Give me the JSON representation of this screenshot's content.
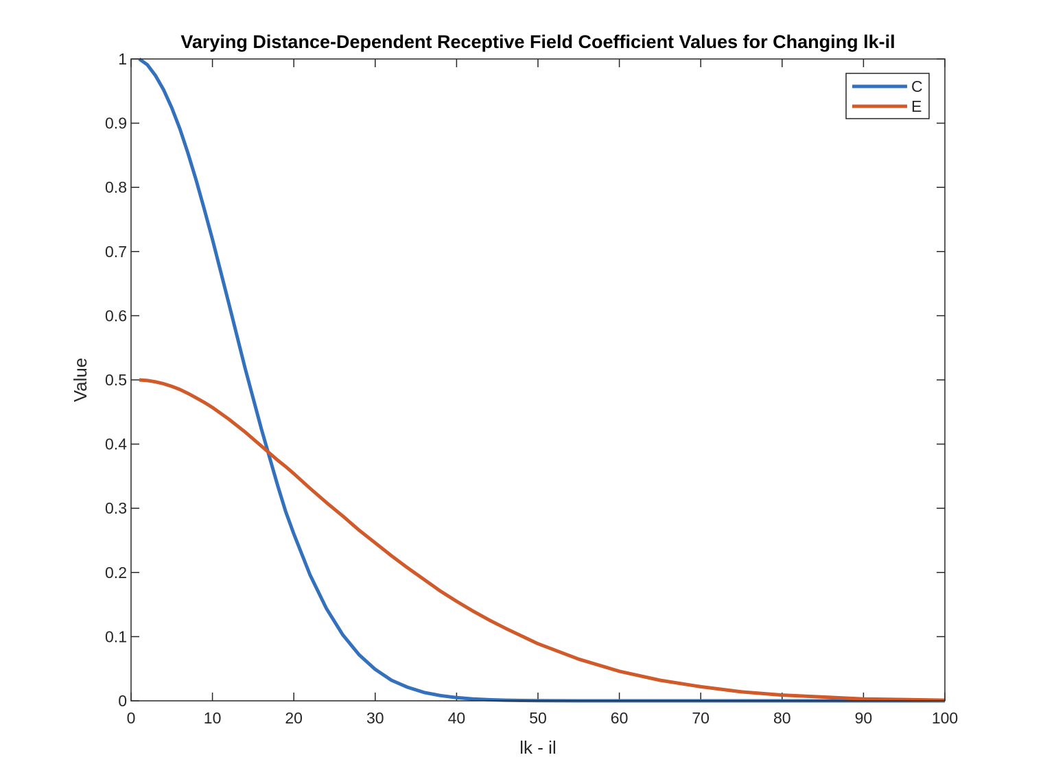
{
  "chart_data": {
    "type": "line",
    "title": "Varying Distance-Dependent Receptive Field Coefficient Values for Changing lk-il",
    "xlabel": "lk - il",
    "ylabel": "Value",
    "xlim": [
      0,
      100
    ],
    "ylim": [
      0,
      1
    ],
    "xticks": [
      "0",
      "10",
      "20",
      "30",
      "40",
      "50",
      "60",
      "70",
      "80",
      "90",
      "100"
    ],
    "yticks": [
      "0",
      "0.1",
      "0.2",
      "0.3",
      "0.4",
      "0.5",
      "0.6",
      "0.7",
      "0.8",
      "0.9",
      "1"
    ],
    "grid": false,
    "legend_position": "top-right",
    "x": [
      1,
      2,
      3,
      4,
      5,
      6,
      7,
      8,
      9,
      10,
      12,
      14,
      16,
      18,
      19,
      20,
      22,
      24,
      26,
      28,
      30,
      32,
      34,
      36,
      38,
      40,
      42,
      44,
      46,
      48,
      50,
      55,
      60,
      65,
      70,
      75,
      80,
      85,
      90,
      95,
      100
    ],
    "series": [
      {
        "name": "C",
        "color": "#3471bd",
        "values": [
          1.0,
          0.991,
          0.974,
          0.952,
          0.924,
          0.891,
          0.853,
          0.811,
          0.766,
          0.719,
          0.62,
          0.519,
          0.424,
          0.336,
          0.295,
          0.26,
          0.196,
          0.144,
          0.103,
          0.072,
          0.049,
          0.032,
          0.021,
          0.013,
          0.0082,
          0.005,
          0.003,
          0.0017,
          0.00095,
          0.0005,
          0.0003,
          0.0,
          0.0,
          0.0,
          0.0,
          0.0,
          0.0,
          0.0,
          0.0,
          0.0,
          0.0
        ]
      },
      {
        "name": "E",
        "color": "#d05a2a",
        "values": [
          0.5,
          0.499,
          0.497,
          0.494,
          0.49,
          0.485,
          0.479,
          0.472,
          0.465,
          0.457,
          0.439,
          0.419,
          0.397,
          0.375,
          0.365,
          0.354,
          0.331,
          0.309,
          0.288,
          0.266,
          0.246,
          0.226,
          0.207,
          0.189,
          0.171,
          0.155,
          0.14,
          0.126,
          0.113,
          0.101,
          0.089,
          0.065,
          0.046,
          0.032,
          0.022,
          0.014,
          0.009,
          0.006,
          0.003,
          0.002,
          0.001
        ]
      }
    ]
  }
}
